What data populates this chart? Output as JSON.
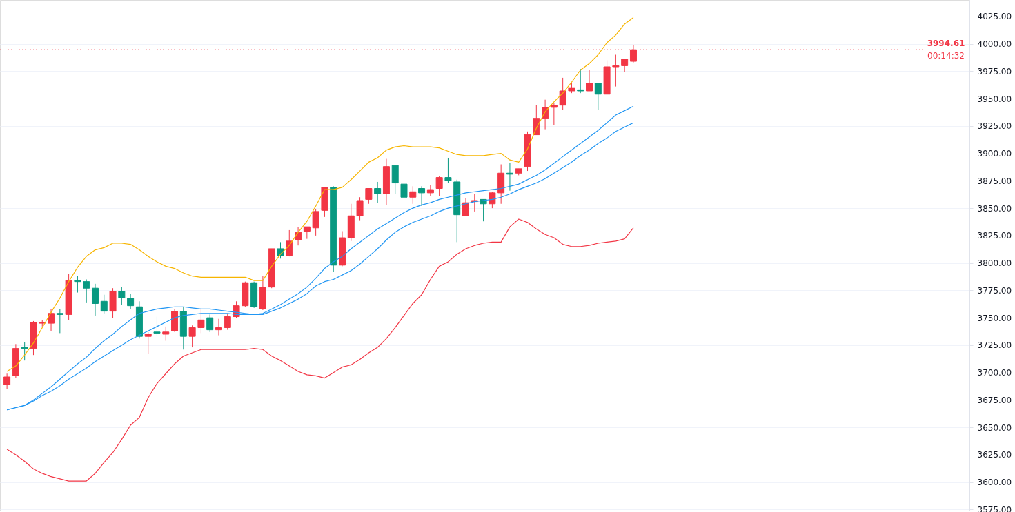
{
  "chart_data": {
    "type": "candlestick",
    "categories": [
      null,
      null,
      null,
      null,
      null,
      null,
      null,
      null,
      null,
      null,
      null,
      null,
      null,
      null,
      null,
      null,
      null,
      null,
      null,
      null,
      null,
      null,
      null,
      null,
      null,
      null,
      null,
      null,
      null,
      null,
      null,
      null,
      null,
      null,
      null,
      null,
      null,
      null,
      null,
      null,
      null,
      null,
      null,
      null,
      null,
      null,
      null,
      null,
      null,
      null,
      null,
      null,
      null,
      null,
      null,
      null,
      null,
      null,
      null,
      null,
      null,
      null,
      null,
      null,
      null,
      null,
      null,
      null,
      null,
      null,
      null,
      null
    ],
    "ohlc": [
      [
        3689,
        3699,
        3685,
        3696
      ],
      [
        3697,
        3726,
        3695,
        3722
      ],
      [
        3723,
        3728,
        3711,
        3722
      ],
      [
        3722,
        3747,
        3716,
        3746
      ],
      [
        3745,
        3748,
        3742,
        3746
      ],
      [
        3745,
        3758,
        3738,
        3754
      ],
      [
        3754,
        3758,
        3736,
        3753
      ],
      [
        3753,
        3790,
        3748,
        3784
      ],
      [
        3784,
        3788,
        3773,
        3783
      ],
      [
        3783,
        3785,
        3764,
        3777
      ],
      [
        3777,
        3781,
        3752,
        3763
      ],
      [
        3765,
        3771,
        3754,
        3756
      ],
      [
        3756,
        3777,
        3750,
        3774
      ],
      [
        3774,
        3778,
        3762,
        3768
      ],
      [
        3768,
        3772,
        3758,
        3761
      ],
      [
        3760,
        3765,
        3731,
        3733
      ],
      [
        3733,
        3737,
        3717,
        3735
      ],
      [
        3737,
        3751,
        3733,
        3736
      ],
      [
        3735,
        3742,
        3729,
        3737
      ],
      [
        3738,
        3758,
        3737,
        3756
      ],
      [
        3756,
        3760,
        3721,
        3733
      ],
      [
        3733,
        3743,
        3723,
        3741
      ],
      [
        3741,
        3758,
        3736,
        3748
      ],
      [
        3750,
        3753,
        3737,
        3739
      ],
      [
        3739,
        3749,
        3734,
        3741
      ],
      [
        3741,
        3754,
        3739,
        3751
      ],
      [
        3751,
        3765,
        3750,
        3761
      ],
      [
        3761,
        3783,
        3760,
        3782
      ],
      [
        3782,
        3783,
        3759,
        3760
      ],
      [
        3758,
        3788,
        3757,
        3778
      ],
      [
        3778,
        3813,
        3777,
        3813
      ],
      [
        3813,
        3819,
        3804,
        3807
      ],
      [
        3807,
        3830,
        3806,
        3820
      ],
      [
        3821,
        3833,
        3816,
        3828
      ],
      [
        3829,
        3833,
        3822,
        3833
      ],
      [
        3832,
        3849,
        3825,
        3847
      ],
      [
        3848,
        3869,
        3842,
        3869
      ],
      [
        3869,
        3870,
        3792,
        3798
      ],
      [
        3798,
        3829,
        3797,
        3823
      ],
      [
        3823,
        3854,
        3820,
        3843
      ],
      [
        3843,
        3860,
        3839,
        3857
      ],
      [
        3858,
        3868,
        3854,
        3868
      ],
      [
        3868,
        3874,
        3855,
        3863
      ],
      [
        3863,
        3895,
        3853,
        3888
      ],
      [
        3889,
        3889,
        3863,
        3873
      ],
      [
        3872,
        3878,
        3857,
        3860
      ],
      [
        3860,
        3870,
        3854,
        3865
      ],
      [
        3868,
        3870,
        3852,
        3864
      ],
      [
        3864,
        3871,
        3861,
        3867
      ],
      [
        3868,
        3879,
        3861,
        3878
      ],
      [
        3878,
        3896,
        3873,
        3875
      ],
      [
        3874,
        3876,
        3819,
        3844
      ],
      [
        3843,
        3859,
        3843,
        3855
      ],
      [
        3856,
        3863,
        3847,
        3857
      ],
      [
        3858,
        3858,
        3838,
        3854
      ],
      [
        3854,
        3865,
        3850,
        3864
      ],
      [
        3864,
        3890,
        3854,
        3882
      ],
      [
        3882,
        3891,
        3866,
        3881
      ],
      [
        3882,
        3886,
        3880,
        3886
      ],
      [
        3888,
        3920,
        3884,
        3917
      ],
      [
        3917,
        3944,
        3917,
        3932
      ],
      [
        3932,
        3949,
        3922,
        3942
      ],
      [
        3942,
        3946,
        3926,
        3944
      ],
      [
        3944,
        3969,
        3940,
        3957
      ],
      [
        3957,
        3964,
        3955,
        3960
      ],
      [
        3958,
        3977,
        3955,
        3957
      ],
      [
        3957,
        3976,
        3957,
        3964
      ],
      [
        3964,
        3964,
        3940,
        3954
      ],
      [
        3954,
        3985,
        3954,
        3979
      ],
      [
        3979,
        3990,
        3961,
        3980
      ],
      [
        3980,
        3986,
        3974,
        3986
      ],
      [
        3984,
        3999,
        3983,
        3994.61
      ]
    ],
    "colors": [
      "#f23645",
      "#f23645",
      "#089981",
      "#f23645",
      "#f23645",
      "#f23645",
      "#089981",
      "#f23645",
      "#089981",
      "#089981",
      "#089981",
      "#089981",
      "#f23645",
      "#089981",
      "#089981",
      "#089981",
      "#f23645",
      "#089981",
      "#f23645",
      "#f23645",
      "#089981",
      "#f23645",
      "#f23645",
      "#089981",
      "#f23645",
      "#f23645",
      "#f23645",
      "#f23645",
      "#089981",
      "#f23645",
      "#f23645",
      "#089981",
      "#f23645",
      "#f23645",
      "#f23645",
      "#f23645",
      "#f23645",
      "#089981",
      "#f23645",
      "#f23645",
      "#f23645",
      "#f23645",
      "#089981",
      "#f23645",
      "#089981",
      "#089981",
      "#f23645",
      "#089981",
      "#f23645",
      "#f23645",
      "#089981",
      "#089981",
      "#f23645",
      "#f23645",
      "#089981",
      "#f23645",
      "#f23645",
      "#089981",
      "#f23645",
      "#f23645",
      "#f23645",
      "#f23645",
      "#f23645",
      "#f23645",
      "#f23645",
      "#089981",
      "#f23645",
      "#089981",
      "#f23645",
      "#f23645",
      "#f23645",
      "#f23645"
    ],
    "series": [
      {
        "type": "line",
        "color": "#f7b500",
        "values": [
          3701,
          3706,
          3716,
          3727,
          3741,
          3755,
          3768,
          3783,
          3796,
          3806,
          3812,
          3814,
          3818,
          3818,
          3817,
          3812,
          3806,
          3801,
          3797,
          3795,
          3791,
          3788,
          3787,
          3787,
          3787,
          3787,
          3787,
          3787,
          3784,
          3784,
          3797,
          3808,
          3816,
          3828,
          3838,
          3852,
          3867,
          3867,
          3869,
          3876,
          3884,
          3892,
          3896,
          3903,
          3906,
          3907,
          3906,
          3906,
          3906,
          3905,
          3902,
          3899,
          3898,
          3898,
          3898,
          3899,
          3900,
          3894,
          3892,
          3904,
          3923,
          3938,
          3947,
          3955,
          3965,
          3976,
          3982,
          3990,
          4001,
          4008,
          4018,
          4024
        ]
      },
      {
        "type": "line",
        "color": "#2196f3",
        "values": [
          3666,
          3668,
          3670,
          3675,
          3681,
          3687,
          3694,
          3701,
          3708,
          3714,
          3722,
          3729,
          3735,
          3742,
          3748,
          3754,
          3756,
          3758,
          3759,
          3760,
          3760,
          3759,
          3758,
          3758,
          3757,
          3756,
          3755,
          3754,
          3753,
          3754,
          3758,
          3762,
          3767,
          3772,
          3778,
          3786,
          3795,
          3801,
          3806,
          3813,
          3819,
          3825,
          3831,
          3836,
          3841,
          3846,
          3850,
          3853,
          3855,
          3858,
          3860,
          3862,
          3864,
          3865,
          3866,
          3867,
          3868,
          3870,
          3872,
          3876,
          3880,
          3885,
          3891,
          3897,
          3903,
          3909,
          3915,
          3921,
          3928,
          3935,
          3939,
          3943
        ]
      },
      {
        "type": "line",
        "color": "#2196f3",
        "values": [
          3666,
          3668,
          3670,
          3674,
          3679,
          3683,
          3688,
          3694,
          3699,
          3704,
          3710,
          3715,
          3720,
          3725,
          3730,
          3734,
          3738,
          3742,
          3746,
          3750,
          3752,
          3753,
          3754,
          3754,
          3754,
          3754,
          3753,
          3753,
          3753,
          3753,
          3756,
          3759,
          3763,
          3767,
          3772,
          3779,
          3783,
          3785,
          3789,
          3793,
          3799,
          3806,
          3813,
          3821,
          3828,
          3833,
          3837,
          3840,
          3843,
          3847,
          3850,
          3852,
          3854,
          3856,
          3857,
          3858,
          3860,
          3863,
          3867,
          3870,
          3873,
          3877,
          3882,
          3887,
          3892,
          3898,
          3903,
          3909,
          3914,
          3920,
          3924,
          3928
        ]
      },
      {
        "type": "line",
        "color": "#f23645",
        "values": [
          3630,
          3625,
          3619,
          3612,
          3608,
          3605,
          3603,
          3601,
          3601,
          3601,
          3608,
          3618,
          3627,
          3639,
          3652,
          3659,
          3677,
          3690,
          3699,
          3708,
          3715,
          3718,
          3721,
          3721,
          3721,
          3721,
          3721,
          3721,
          3722,
          3721,
          3715,
          3711,
          3706,
          3701,
          3698,
          3697,
          3695,
          3700,
          3705,
          3707,
          3712,
          3718,
          3723,
          3731,
          3741,
          3752,
          3763,
          3771,
          3785,
          3797,
          3801,
          3808,
          3813,
          3816,
          3818,
          3819,
          3819,
          3833,
          3840,
          3837,
          3831,
          3826,
          3823,
          3817,
          3815,
          3815,
          3816,
          3818,
          3819,
          3820,
          3822,
          3832
        ]
      }
    ],
    "ylim": [
      3574,
      4040
    ],
    "yticks": [
      {
        "value": 3575,
        "label": "3575.00"
      },
      {
        "value": 3600,
        "label": "3600.00"
      },
      {
        "value": 3625,
        "label": "3625.00"
      },
      {
        "value": 3650,
        "label": "3650.00"
      },
      {
        "value": 3675,
        "label": "3675.00"
      },
      {
        "value": 3700,
        "label": "3700.00"
      },
      {
        "value": 3725,
        "label": "3725.00"
      },
      {
        "value": 3750,
        "label": "3750.00"
      },
      {
        "value": 3775,
        "label": "3775.00"
      },
      {
        "value": 3800,
        "label": "3800.00"
      },
      {
        "value": 3825,
        "label": "3825.00"
      },
      {
        "value": 3850,
        "label": "3850.00"
      },
      {
        "value": 3875,
        "label": "3875.00"
      },
      {
        "value": 3900,
        "label": "3900.00"
      },
      {
        "value": 3925,
        "label": "3925.00"
      },
      {
        "value": 3950,
        "label": "3950.00"
      },
      {
        "value": 3975,
        "label": "3975.00"
      },
      {
        "value": 4000,
        "label": "4000.00"
      },
      {
        "value": 4025,
        "label": "4025.00"
      }
    ],
    "ref_lines": [
      {
        "axis": "y",
        "value": 3994.61,
        "label": "3994.61",
        "color": "#f23645",
        "line_style": "dotted"
      }
    ],
    "annotations": [
      "00:14:32"
    ],
    "grid": "y",
    "tick_labels": "y"
  }
}
